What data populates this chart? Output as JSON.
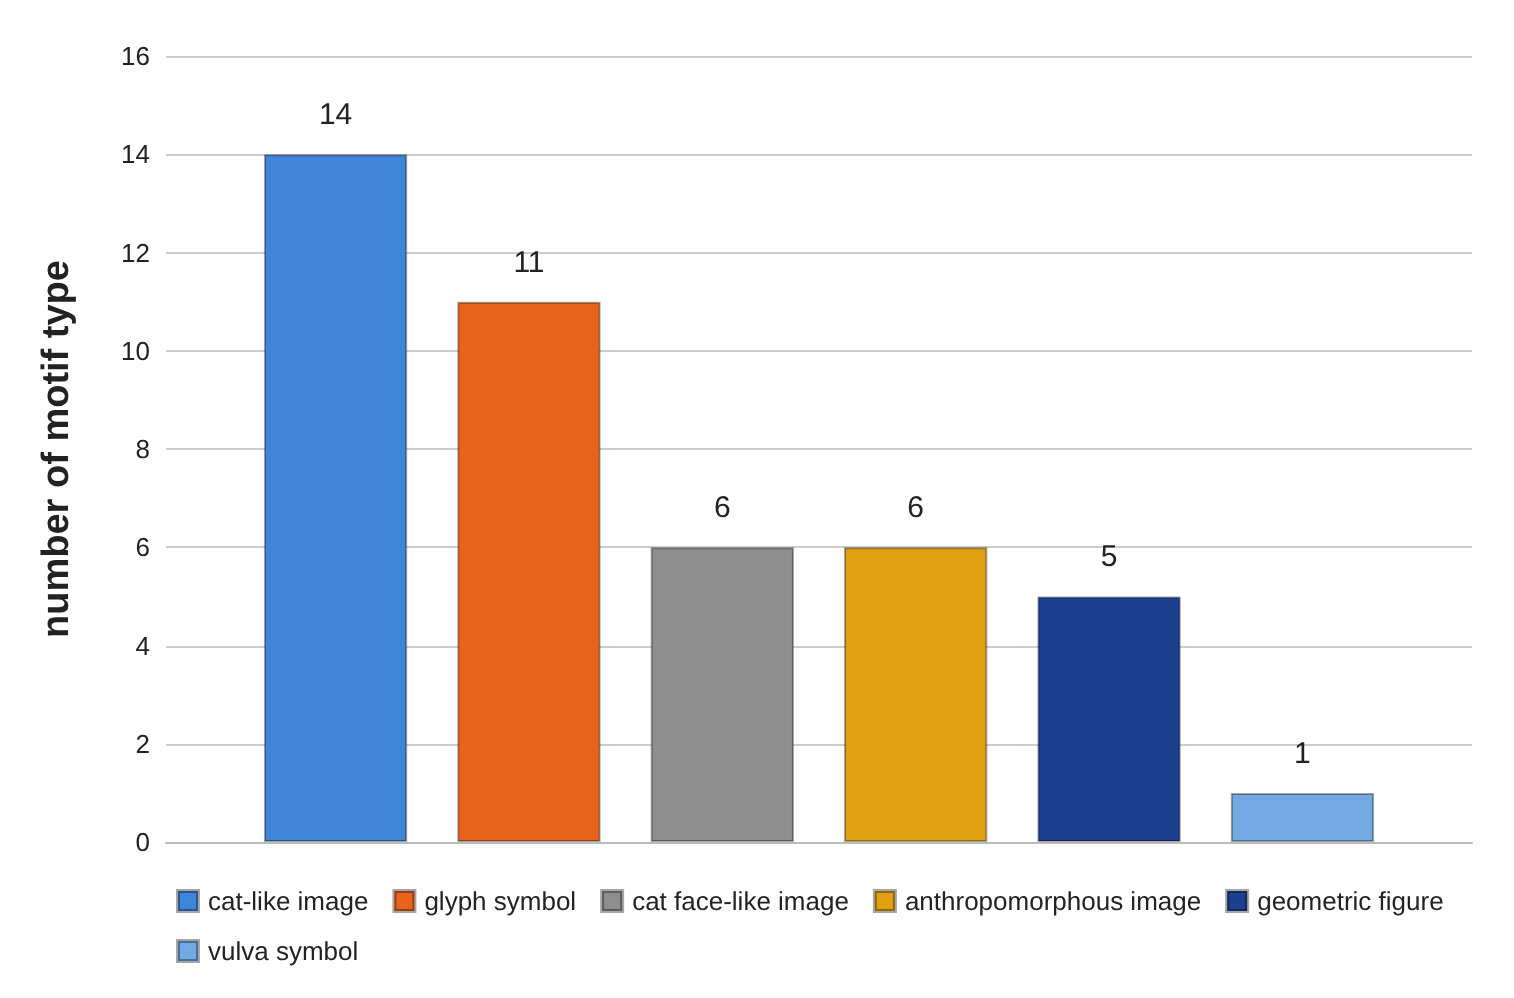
{
  "chart_data": {
    "type": "bar",
    "ylabel": "number of motif type",
    "categories": [
      null
    ],
    "series": [
      {
        "name": "cat-like image",
        "color": "#3f86d8",
        "values": [
          14
        ]
      },
      {
        "name": "glyph symbol",
        "color": "#e8641c",
        "values": [
          11
        ]
      },
      {
        "name": "cat face-like image",
        "color": "#8e8e8e",
        "values": [
          6
        ]
      },
      {
        "name": "anthropomorphous image",
        "color": "#e0a012",
        "values": [
          6
        ]
      },
      {
        "name": "geometric figure",
        "color": "#1c3f90",
        "values": [
          5
        ]
      },
      {
        "name": "vulva symbol",
        "color": "#72a9e2",
        "values": [
          1
        ]
      }
    ],
    "ylim": [
      0,
      16
    ],
    "yticks": [
      0,
      2,
      4,
      6,
      8,
      10,
      12,
      14,
      16
    ],
    "grid": "y",
    "legend": "bottom",
    "data_labels": true
  }
}
